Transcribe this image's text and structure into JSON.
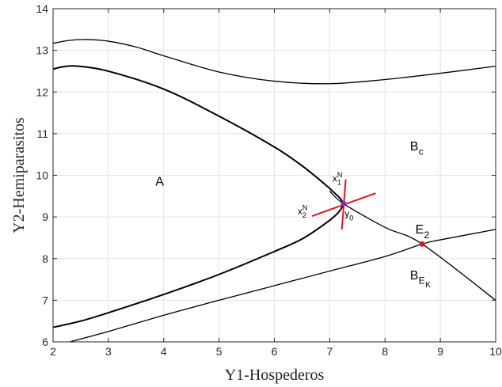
{
  "chart_data": {
    "type": "line",
    "xlabel": "Y1-Hospederos",
    "ylabel": "Y2-Hemiparasitos",
    "xlim": [
      2,
      10
    ],
    "ylim": [
      6,
      14
    ],
    "xticks": [
      2,
      3,
      4,
      5,
      6,
      7,
      8,
      9,
      10
    ],
    "yticks": [
      6,
      7,
      8,
      9,
      10,
      11,
      12,
      13,
      14
    ],
    "grid": true,
    "series": [
      {
        "key": "upper_curve",
        "style": "thin",
        "x": [
          2,
          2.3,
          2.6,
          3.0,
          3.5,
          4.0,
          5.0,
          6.0,
          7.0,
          8.0,
          9.0,
          10.0
        ],
        "y": [
          13.17,
          13.24,
          13.26,
          13.22,
          13.08,
          12.87,
          12.48,
          12.26,
          12.2,
          12.3,
          12.45,
          12.62
        ]
      },
      {
        "key": "separatrix_upper",
        "style": "thick",
        "x": [
          2,
          2.2,
          2.45,
          3.0,
          4.0,
          5.0,
          6.0,
          6.5,
          6.9,
          7.1,
          7.2,
          7.25
        ],
        "y": [
          12.55,
          12.61,
          12.62,
          12.5,
          12.07,
          11.42,
          10.68,
          10.23,
          9.8,
          9.56,
          9.43,
          9.32
        ]
      },
      {
        "key": "separatrix_lower",
        "style": "thick",
        "x": [
          2,
          2.5,
          3,
          4,
          5,
          6,
          6.5,
          6.9,
          7.1,
          7.2,
          7.25
        ],
        "y": [
          6.35,
          6.5,
          6.7,
          7.14,
          7.62,
          8.17,
          8.47,
          8.82,
          9.03,
          9.18,
          9.32
        ]
      },
      {
        "key": "stable_manifold",
        "style": "thin",
        "x": [
          7.0,
          7.25,
          8.0,
          8.67,
          10.0
        ],
        "y": [
          9.62,
          9.32,
          8.75,
          8.35,
          7.0
        ]
      },
      {
        "key": "lower_curve",
        "style": "thin",
        "x": [
          2.3,
          3,
          4,
          5,
          6,
          7,
          8,
          8.67,
          9,
          10
        ],
        "y": [
          6.0,
          6.25,
          6.64,
          7.0,
          7.35,
          7.7,
          8.05,
          8.35,
          8.45,
          8.7
        ]
      }
    ],
    "red_lines": [
      {
        "key": "x1N",
        "x": [
          7.22,
          7.29
        ],
        "y": [
          8.7,
          9.9
        ]
      },
      {
        "key": "x2N",
        "x": [
          6.68,
          7.83
        ],
        "y": [
          9.02,
          9.57
        ]
      }
    ],
    "points": [
      {
        "key": "y0",
        "x": 7.25,
        "y": 9.32,
        "color": "#7b2fbe"
      },
      {
        "key": "E2",
        "x": 8.67,
        "y": 8.35,
        "color": "#e0141e"
      }
    ],
    "annotations": [
      {
        "key": "A",
        "text": "A",
        "x": 3.85,
        "y": 9.75,
        "size": 16,
        "sub": "",
        "sup": ""
      },
      {
        "key": "Bc",
        "text": "B",
        "x": 8.45,
        "y": 10.6,
        "size": 16,
        "sub": "c",
        "sup": ""
      },
      {
        "key": "BEK",
        "text": "B",
        "x": 8.45,
        "y": 7.5,
        "size": 16,
        "sub": "E",
        "subsub": "K",
        "sup": ""
      },
      {
        "key": "E2",
        "text": "E",
        "x": 8.55,
        "y": 8.6,
        "size": 16,
        "sub": "2",
        "sup": ""
      },
      {
        "key": "x1N",
        "text": "x",
        "x": 7.05,
        "y": 9.85,
        "size": 12,
        "sub": "1",
        "sup": "N"
      },
      {
        "key": "x2N",
        "text": "x",
        "x": 6.42,
        "y": 9.06,
        "size": 12,
        "sub": "2",
        "sup": "N"
      },
      {
        "key": "y0",
        "text": "y",
        "x": 7.27,
        "y": 9.0,
        "size": 12,
        "sub": "0",
        "sup": ""
      }
    ]
  }
}
